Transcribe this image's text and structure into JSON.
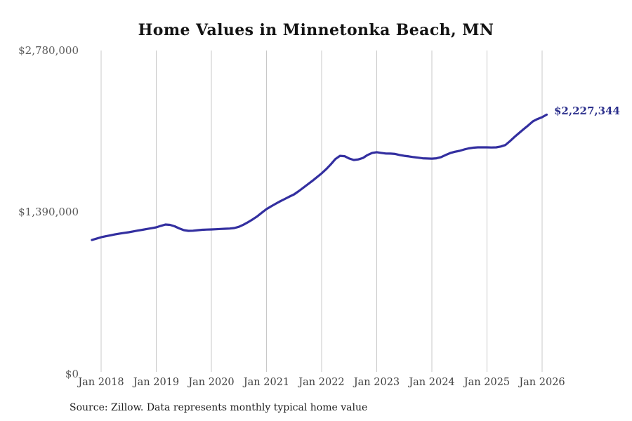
{
  "title": "Home Values in Minnetonka Beach, MN",
  "source_note": "Source: Zillow. Data represents monthly typical home value",
  "end_label": "$2,227,344",
  "colors": {
    "line": "#332fa0",
    "end_label": "#2b2f8c",
    "grid": "#c8c8c8",
    "y_tick_text": "#595959",
    "x_tick_text": "#404040",
    "title_text": "#131313",
    "source_text": "#1f1f1f",
    "background": "#ffffff"
  },
  "chart_data": {
    "type": "line",
    "title": "Home Values in Minnetonka Beach, MN",
    "xlabel": "",
    "ylabel": "",
    "ylim": [
      0,
      2780000
    ],
    "y_tick_labels": [
      "$0",
      "$1,390,000",
      "$2,780,000"
    ],
    "y_tick_values": [
      0,
      1390000,
      2780000
    ],
    "x_tick_labels": [
      "Jan 2018",
      "Jan 2019",
      "Jan 2020",
      "Jan 2021",
      "Jan 2022",
      "Jan 2023",
      "Jan 2024",
      "Jan 2025",
      "Jan 2026"
    ],
    "grid": "vertical-only",
    "legend": "none",
    "last_point": {
      "date": "2026-02",
      "value": 2227344,
      "label": "$2,227,344"
    },
    "series": [
      {
        "name": "Typical home value",
        "frequency": "monthly",
        "start_month": "2017-11",
        "end_month": "2026-02",
        "values": [
          1148000,
          1160000,
          1172000,
          1180000,
          1188000,
          1196000,
          1203000,
          1209000,
          1215000,
          1222000,
          1229000,
          1236000,
          1243000,
          1250000,
          1257000,
          1270000,
          1281000,
          1278000,
          1266000,
          1248000,
          1233000,
          1227000,
          1228000,
          1232000,
          1236000,
          1238000,
          1239000,
          1241000,
          1243000,
          1245000,
          1247000,
          1251000,
          1262000,
          1280000,
          1302000,
          1326000,
          1352000,
          1384000,
          1414000,
          1438000,
          1460000,
          1482000,
          1502000,
          1522000,
          1541000,
          1568000,
          1598000,
          1628000,
          1658000,
          1690000,
          1722000,
          1758000,
          1800000,
          1845000,
          1873000,
          1870000,
          1850000,
          1837000,
          1842000,
          1855000,
          1880000,
          1898000,
          1904000,
          1898000,
          1893000,
          1892000,
          1889000,
          1880000,
          1873000,
          1868000,
          1862000,
          1857000,
          1852000,
          1850000,
          1849000,
          1852000,
          1862000,
          1880000,
          1897000,
          1908000,
          1916000,
          1927000,
          1937000,
          1943000,
          1946000,
          1946000,
          1946000,
          1945000,
          1946000,
          1953000,
          1966000,
          1999000,
          2036000,
          2070000,
          2103000,
          2136000,
          2170000,
          2190000,
          2206000,
          2227344
        ]
      }
    ]
  }
}
